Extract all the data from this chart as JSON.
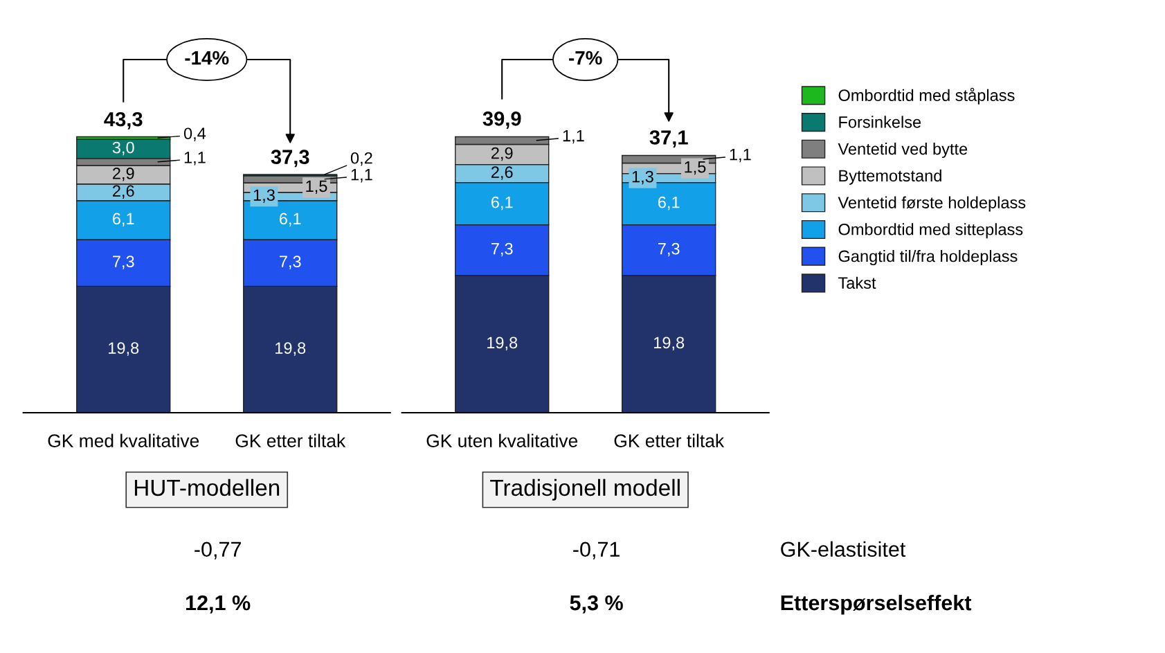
{
  "chart_data": [
    {
      "type": "bar",
      "stacked": true,
      "categories": [
        "GK med kvalitative",
        "GK etter tiltak"
      ],
      "series": [
        {
          "color": "#22336b",
          "values": [
            19.8,
            19.8
          ],
          "value_labels": [
            "19,8",
            "19,8"
          ]
        },
        {
          "color": "#2152f0",
          "values": [
            7.3,
            7.3
          ],
          "value_labels": [
            "7,3",
            "7,3"
          ]
        },
        {
          "color": "#12a0e8",
          "values": [
            6.1,
            6.1
          ],
          "value_labels": [
            "6,1",
            "6,1"
          ]
        },
        {
          "color": "#7ec8e6",
          "values": [
            2.6,
            1.3
          ],
          "value_labels": [
            "2,6",
            "1,3"
          ]
        },
        {
          "color": "#c0c0c0",
          "values": [
            2.9,
            1.5
          ],
          "value_labels": [
            "2,9",
            "1,5"
          ]
        },
        {
          "color": "#7f7f7f",
          "values": [
            1.1,
            1.1
          ],
          "value_labels": [
            "1,1",
            "1,1"
          ]
        },
        {
          "color": "#0a7a70",
          "values": [
            3.0,
            0.2
          ],
          "value_labels": [
            "3,0",
            "0,2"
          ]
        },
        {
          "color": "#1db81d",
          "values": [
            0.4,
            null
          ],
          "value_labels": [
            "0,4",
            null
          ]
        }
      ],
      "totals": [
        "43,3",
        "37,3"
      ],
      "annotations": [
        "-14%",
        "HUT-modellen",
        "-0,77",
        "12,1 %"
      ]
    },
    {
      "type": "bar",
      "stacked": true,
      "categories": [
        "GK uten kvalitative",
        "GK etter tiltak"
      ],
      "series": [
        {
          "name": "Takst",
          "color": "#22336b",
          "values": [
            19.8,
            19.8
          ],
          "value_labels": [
            "19,8",
            "19,8"
          ]
        },
        {
          "name": "Gangtid til/fra holdeplass",
          "color": "#2152f0",
          "values": [
            7.3,
            7.3
          ],
          "value_labels": [
            "7,3",
            "7,3"
          ]
        },
        {
          "name": "Ombordtid med sitteplass",
          "color": "#12a0e8",
          "values": [
            6.1,
            6.1
          ],
          "value_labels": [
            "6,1",
            "6,1"
          ]
        },
        {
          "name": "Ventetid første holdeplass",
          "color": "#7ec8e6",
          "values": [
            2.6,
            1.3
          ],
          "value_labels": [
            "2,6",
            "1,3"
          ]
        },
        {
          "name": "Byttemotstand",
          "color": "#c0c0c0",
          "values": [
            2.9,
            1.5
          ],
          "value_labels": [
            "2,9",
            "1,5"
          ]
        },
        {
          "name": "Ventetid ved bytte",
          "color": "#7f7f7f",
          "values": [
            1.1,
            1.1
          ],
          "value_labels": [
            "1,1",
            "1,1"
          ]
        },
        {
          "name": "Forsinkelse",
          "color": "#0a7a70",
          "values": [
            null,
            null
          ]
        },
        {
          "name": "Ombordtid med ståplass",
          "color": "#1db81d",
          "values": [
            null,
            null
          ]
        }
      ],
      "totals": [
        "39,9",
        "37,1"
      ],
      "legend": "right",
      "annotations": [
        "-7%",
        "Tradisjonell modell",
        "-0,71",
        "5,3 %",
        "GK-elastisitet",
        "Etterspørselseffekt"
      ]
    }
  ]
}
